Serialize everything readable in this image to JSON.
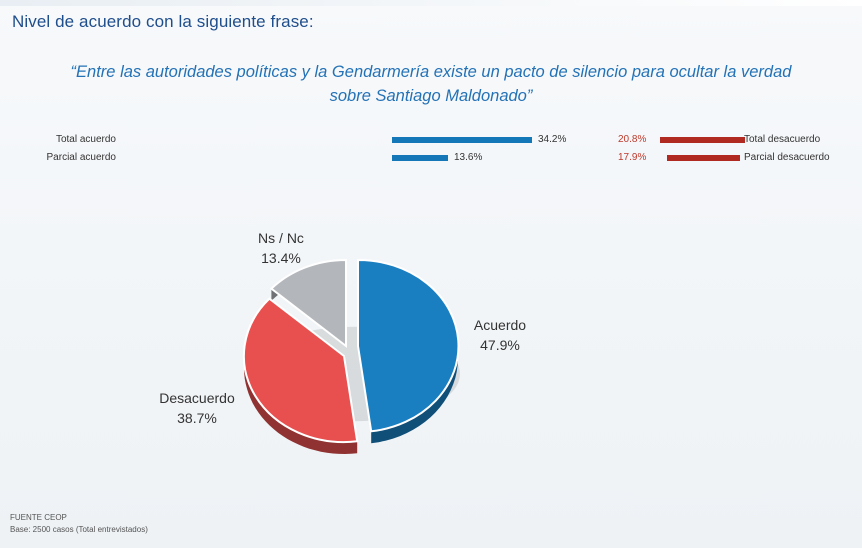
{
  "heading": "Nivel de acuerdo con la siguiente frase:",
  "quote": {
    "line1": "“Entre las autoridades políticas y la Gendarmería existe un pacto de silencio para ocultar la verdad",
    "line2": "sobre Santiago Maldonado”"
  },
  "breakdown": {
    "left": [
      {
        "label": "Total acuerdo",
        "value": 34.2,
        "value_label": "34.2%"
      },
      {
        "label": "Parcial acuerdo",
        "value": 13.6,
        "value_label": "13.6%"
      }
    ],
    "right": [
      {
        "label": "Total desacuerdo",
        "value": 20.8,
        "value_label": "20.8%"
      },
      {
        "label": "Parcial desacuerdo",
        "value": 17.9,
        "value_label": "17.9%"
      }
    ],
    "colors": {
      "agree": "#1478b8",
      "disagree": "#b02a22"
    }
  },
  "chart_data": {
    "type": "pie",
    "slices": [
      {
        "name": "Acuerdo",
        "value": 47.9,
        "label": "47.9%",
        "color": "#1a7fc1"
      },
      {
        "name": "Desacuerdo",
        "value": 38.7,
        "label": "38.7%",
        "color": "#e85050"
      },
      {
        "name": "Ns / Nc",
        "value": 13.4,
        "label": "13.4%",
        "color": "#b3b7bb"
      }
    ]
  },
  "footer": {
    "source": "FUENTE CEOP",
    "base": "Base: 2500 casos (Total entrevistados)"
  }
}
